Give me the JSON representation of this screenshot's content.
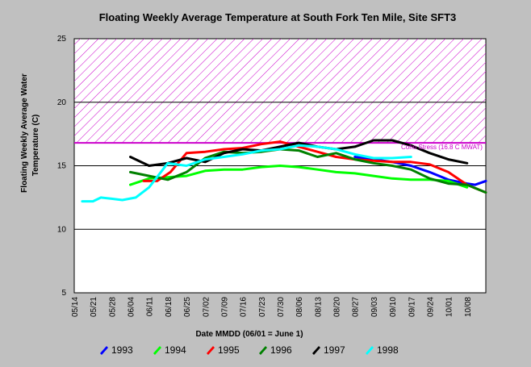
{
  "chart_data": {
    "type": "line",
    "title": "Floating Weekly Average Temperature at South Fork Ten Mile, Site SFT3",
    "xlabel": "Date MMDD (06/01 = June 1)",
    "ylabel_lines": [
      "Floating Weekly Average Water",
      "Temperature (C)"
    ],
    "ylim": [
      5,
      25
    ],
    "yticks": [
      5,
      10,
      15,
      20,
      25
    ],
    "xticks": [
      "05/14",
      "05/21",
      "05/28",
      "06/04",
      "06/11",
      "06/18",
      "06/25",
      "07/02",
      "07/09",
      "07/16",
      "07/23",
      "07/30",
      "08/06",
      "08/13",
      "08/20",
      "08/27",
      "09/03",
      "09/10",
      "09/17",
      "09/24",
      "10/01",
      "10/08"
    ],
    "x_units": "day index where 0 = 05/14",
    "xlim": [
      0,
      154
    ],
    "gridlines": [
      10,
      15,
      20
    ],
    "threshold": {
      "value": 16.8,
      "label": "Coho Stress (16.8 C MWAT)",
      "color": "#cc00cc",
      "band_upper": 25
    },
    "series": [
      {
        "name": "1993",
        "color": "#0000ff",
        "x": [
          105,
          112,
          119,
          126,
          133,
          140,
          147,
          150,
          154
        ],
        "y": [
          15.7,
          15.5,
          15.3,
          15.0,
          14.5,
          13.9,
          13.6,
          13.5,
          13.8
        ]
      },
      {
        "name": "1994",
        "color": "#00ff00",
        "x": [
          21,
          28,
          35,
          42,
          49,
          56,
          63,
          70,
          77,
          84,
          91,
          98,
          105,
          112,
          119,
          126,
          133,
          140,
          147
        ],
        "y": [
          13.5,
          14.0,
          14.1,
          14.2,
          14.6,
          14.7,
          14.7,
          14.9,
          15.0,
          14.9,
          14.7,
          14.5,
          14.4,
          14.2,
          14.0,
          13.9,
          13.9,
          13.8,
          13.3
        ]
      },
      {
        "name": "1995",
        "color": "#ff0000",
        "x": [
          26,
          31,
          36,
          42,
          49,
          56,
          63,
          70,
          77,
          84,
          91,
          98,
          105,
          112,
          119,
          126,
          133,
          140,
          147,
          154
        ],
        "y": [
          13.8,
          13.8,
          14.5,
          16.0,
          16.1,
          16.3,
          16.4,
          16.7,
          16.9,
          16.5,
          16.1,
          15.7,
          15.5,
          15.4,
          15.3,
          15.3,
          15.1,
          14.5,
          13.5,
          12.9
        ]
      },
      {
        "name": "1996",
        "color": "#008000",
        "x": [
          21,
          28,
          35,
          42,
          49,
          56,
          63,
          70,
          77,
          84,
          91,
          98,
          105,
          112,
          119,
          126,
          133,
          140,
          147,
          154
        ],
        "y": [
          14.5,
          14.2,
          13.9,
          14.5,
          15.6,
          16.1,
          16.0,
          16.1,
          16.3,
          16.2,
          15.7,
          16.0,
          15.5,
          15.2,
          15.0,
          14.7,
          14.0,
          13.6,
          13.5,
          12.9
        ]
      },
      {
        "name": "1997",
        "color": "#000000",
        "x": [
          21,
          28,
          35,
          42,
          49,
          56,
          63,
          70,
          77,
          84,
          91,
          98,
          105,
          112,
          119,
          126,
          133,
          140,
          147
        ],
        "y": [
          15.7,
          15.0,
          15.2,
          15.6,
          15.3,
          16.0,
          16.3,
          16.2,
          16.5,
          16.8,
          16.5,
          16.3,
          16.5,
          17.0,
          17.0,
          16.6,
          16.0,
          15.5,
          15.2
        ]
      },
      {
        "name": "1998",
        "color": "#00ffff",
        "x": [
          3,
          7,
          10,
          14,
          18,
          23,
          28,
          35,
          42,
          49,
          56,
          63,
          70,
          77,
          84,
          91,
          98,
          105,
          112,
          119,
          126
        ],
        "y": [
          12.2,
          12.2,
          12.5,
          12.4,
          12.3,
          12.5,
          13.3,
          15.2,
          15.0,
          15.5,
          15.7,
          15.9,
          16.2,
          16.3,
          16.6,
          16.5,
          16.3,
          15.9,
          15.6,
          15.6,
          15.7
        ]
      }
    ]
  }
}
